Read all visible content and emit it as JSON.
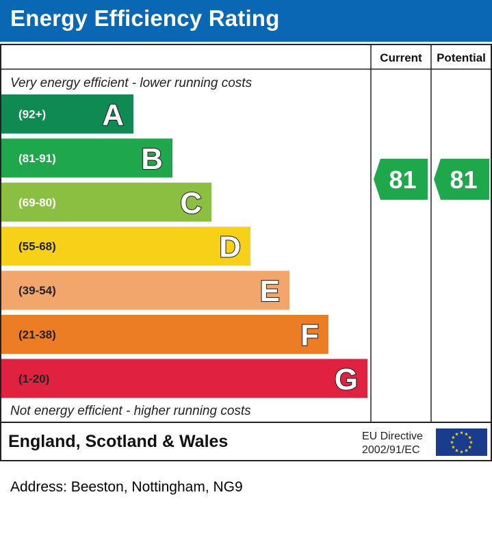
{
  "title": "Energy Efficiency Rating",
  "chart_data": {
    "type": "bar",
    "title": "Energy Efficiency Rating",
    "columns": {
      "current": "Current",
      "potential": "Potential"
    },
    "top_caption": "Very energy efficient - lower running costs",
    "bottom_caption": "Not energy efficient - higher running costs",
    "bands": [
      {
        "letter": "A",
        "range": "(92+)",
        "color": "#0f8a52"
      },
      {
        "letter": "B",
        "range": "(81-91)",
        "color": "#1ea84b"
      },
      {
        "letter": "C",
        "range": "(69-80)",
        "color": "#8bbf41"
      },
      {
        "letter": "D",
        "range": "(55-68)",
        "color": "#f7d117"
      },
      {
        "letter": "E",
        "range": "(39-54)",
        "color": "#f2a66b"
      },
      {
        "letter": "F",
        "range": "(21-38)",
        "color": "#ed7d25"
      },
      {
        "letter": "G",
        "range": "(1-20)",
        "color": "#e0213f"
      }
    ],
    "current": {
      "value": 81,
      "band": "B",
      "color": "#1ea84b"
    },
    "potential": {
      "value": 81,
      "band": "B",
      "color": "#1ea84b"
    }
  },
  "footer": {
    "region": "England, Scotland & Wales",
    "directive_line1": "EU Directive",
    "directive_line2": "2002/91/EC",
    "flag_icon": "eu-flag-icon"
  },
  "address": "Address: Beeston, Nottingham, NG9"
}
